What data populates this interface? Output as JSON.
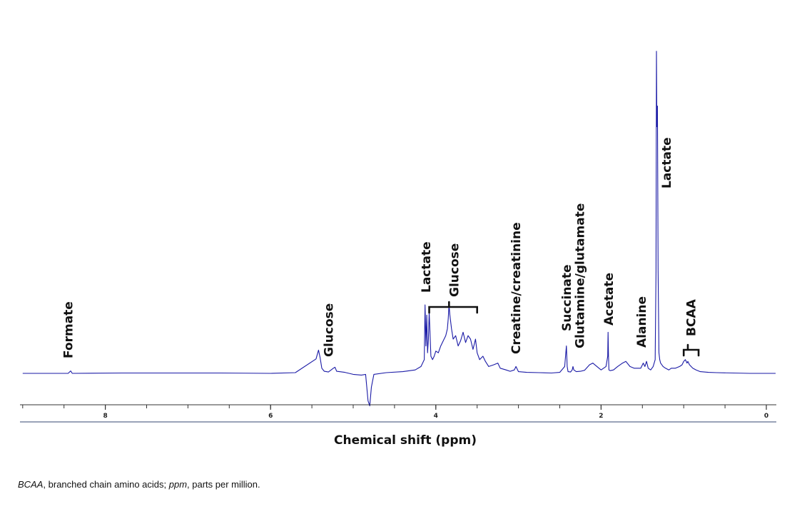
{
  "chart_data": {
    "type": "line",
    "title": "",
    "xlabel": "Chemical shift (ppm)",
    "ylabel": "",
    "x_axis": {
      "min": 0,
      "max": 9,
      "reversed": true,
      "ticks": [
        8,
        6,
        4,
        2,
        0
      ]
    },
    "grid": false,
    "legend": "none",
    "series": [
      {
        "color": "#1a1aa6",
        "x": [
          9.0,
          8.6,
          8.45,
          8.42,
          8.4,
          7.8,
          7.2,
          6.6,
          6.0,
          5.7,
          5.45,
          5.42,
          5.4,
          5.38,
          5.35,
          5.3,
          5.24,
          5.22,
          5.2,
          5.1,
          5.0,
          4.9,
          4.85,
          4.82,
          4.8,
          4.78,
          4.75,
          4.6,
          4.4,
          4.25,
          4.18,
          4.14,
          4.13,
          4.12,
          4.11,
          4.1,
          4.09,
          4.08,
          4.06,
          4.04,
          4.02,
          4.0,
          3.97,
          3.94,
          3.91,
          3.88,
          3.86,
          3.85,
          3.84,
          3.83,
          3.81,
          3.79,
          3.76,
          3.73,
          3.7,
          3.67,
          3.64,
          3.61,
          3.58,
          3.55,
          3.52,
          3.5,
          3.47,
          3.43,
          3.4,
          3.36,
          3.3,
          3.25,
          3.22,
          3.15,
          3.1,
          3.05,
          3.03,
          3.0,
          2.9,
          2.75,
          2.6,
          2.5,
          2.44,
          2.42,
          2.41,
          2.4,
          2.37,
          2.35,
          2.34,
          2.33,
          2.3,
          2.25,
          2.2,
          2.14,
          2.1,
          2.05,
          2.0,
          1.94,
          1.92,
          1.915,
          1.91,
          1.905,
          1.89,
          1.85,
          1.8,
          1.74,
          1.7,
          1.65,
          1.6,
          1.52,
          1.49,
          1.47,
          1.45,
          1.43,
          1.4,
          1.37,
          1.345,
          1.335,
          1.33,
          1.325,
          1.318,
          1.31,
          1.3,
          1.29,
          1.28,
          1.25,
          1.22,
          1.18,
          1.15,
          1.1,
          1.05,
          1.02,
          1.0,
          0.98,
          0.96,
          0.95,
          0.93,
          0.91,
          0.89,
          0.85,
          0.8,
          0.7,
          0.6,
          0.4,
          0.2,
          0.0,
          -0.2
        ],
        "y": [
          0.0,
          0.0,
          0.0,
          0.7,
          0.0,
          0.1,
          0.1,
          0.1,
          0.0,
          0.2,
          4.2,
          6.8,
          4.5,
          1.5,
          0.6,
          0.4,
          1.5,
          1.8,
          0.6,
          0.3,
          -0.3,
          -0.5,
          -0.3,
          -8.0,
          -9.5,
          -4.0,
          -0.3,
          0.2,
          0.5,
          1.0,
          2.0,
          4.0,
          20.0,
          8.0,
          17.0,
          6.0,
          10.0,
          18.0,
          5.0,
          4.0,
          5.0,
          6.5,
          6.0,
          8.0,
          9.5,
          11.0,
          13.0,
          16.0,
          20.0,
          17.0,
          13.0,
          10.0,
          11.0,
          8.0,
          9.5,
          12.0,
          9.0,
          11.0,
          10.0,
          7.0,
          10.0,
          6.0,
          4.0,
          5.0,
          3.5,
          2.0,
          2.5,
          3.0,
          1.5,
          1.0,
          0.6,
          1.0,
          2.0,
          0.5,
          0.3,
          0.2,
          0.1,
          0.3,
          2.0,
          8.0,
          2.0,
          0.5,
          0.4,
          1.0,
          2.0,
          1.0,
          0.5,
          0.6,
          0.9,
          2.5,
          3.0,
          2.0,
          1.0,
          2.0,
          5.0,
          12.0,
          5.0,
          1.0,
          0.8,
          1.0,
          2.0,
          3.0,
          3.5,
          2.0,
          1.5,
          1.5,
          3.0,
          2.0,
          3.5,
          1.5,
          1.0,
          2.0,
          4.0,
          30.0,
          94.0,
          72.0,
          78.0,
          30.0,
          6.0,
          4.0,
          3.0,
          2.0,
          1.5,
          1.0,
          1.5,
          1.5,
          2.0,
          2.5,
          3.5,
          4.0,
          3.0,
          3.5,
          2.5,
          2.0,
          1.5,
          1.0,
          0.5,
          0.3,
          0.2,
          0.1,
          0.0,
          0.0,
          0.0
        ]
      }
    ],
    "annotations": [
      {
        "text": "Formate",
        "x": 8.45
      },
      {
        "text": "Glucose",
        "x": 5.3
      },
      {
        "text": "Lactate",
        "x": 4.12
      },
      {
        "text": "Glucose",
        "x": 3.78
      },
      {
        "text": "Creatine/creatinine",
        "x": 3.03
      },
      {
        "text": "Succinate",
        "x": 2.42
      },
      {
        "text": "Glutamine/glutamate",
        "x": 2.26
      },
      {
        "text": "Acetate",
        "x": 1.91
      },
      {
        "text": "Alanine",
        "x": 1.51
      },
      {
        "text": "Lactate",
        "x": 1.21
      },
      {
        "text": "BCAA",
        "x": 0.91
      }
    ],
    "brackets": [
      {
        "x_start": 4.08,
        "x_end": 3.5,
        "tip_x": 3.84
      },
      {
        "x_start": 1.0,
        "x_end": 0.82,
        "tip_x": 0.95
      }
    ]
  },
  "caption": {
    "abbr1": "BCAA",
    "def1": ", branched chain amino acids; ",
    "abbr2": "ppm",
    "def2": ", parts per million."
  }
}
